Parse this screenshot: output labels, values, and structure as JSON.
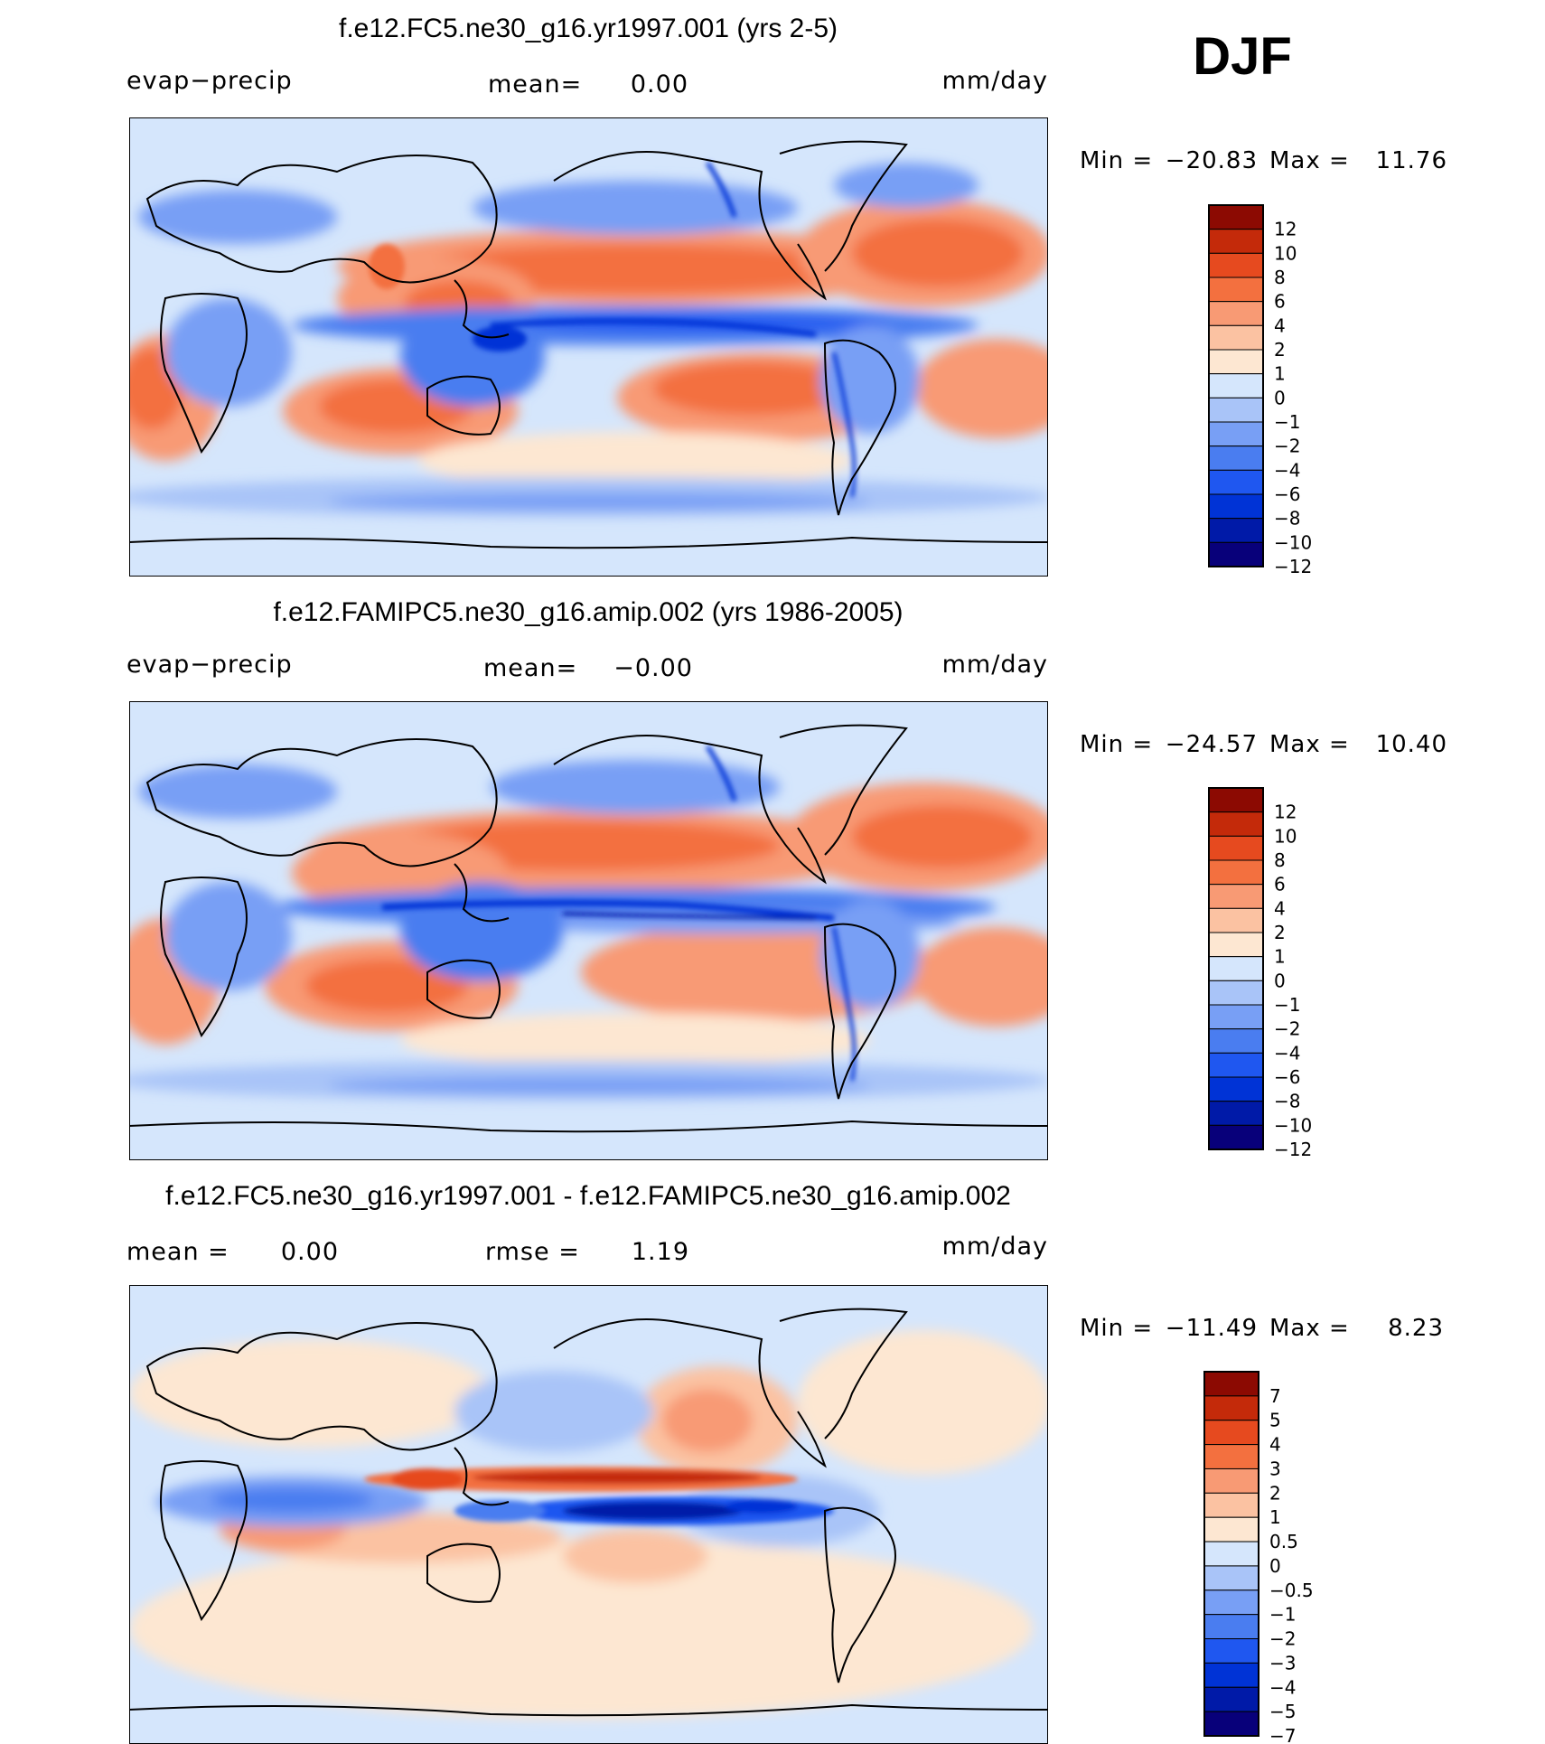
{
  "season": "DJF",
  "colors": {
    "levels12": [
      "#08007a",
      "#001aa8",
      "#0033d6",
      "#1f57f0",
      "#4a7df0",
      "#789ff5",
      "#a9c4f8",
      "#d5e6fc",
      "#fde7d2",
      "#fbc2a2",
      "#f89a74",
      "#f3703f",
      "#e64a1f",
      "#c42a0a",
      "#8c0a02"
    ],
    "levels7": [
      "#08007a",
      "#001aa8",
      "#0033d6",
      "#1f57f0",
      "#4a7df0",
      "#789ff5",
      "#a9c4f8",
      "#d5e6fc",
      "#fde7d2",
      "#fbc2a2",
      "#f89a74",
      "#f3703f",
      "#e64a1f",
      "#c42a0a",
      "#8c0a02"
    ]
  },
  "panels": [
    {
      "id": "p1",
      "title": "f.e12.FC5.ne30_g16.yr1997.001 (yrs 2-5)",
      "left_label": "evap−precip",
      "mean_label": "mean=",
      "mean_value": "0.00",
      "units": "mm/day",
      "min_label": "Min  =",
      "min_value": "−20.83",
      "max_label": "Max  =",
      "max_value": "11.76",
      "colorbar_labels": [
        "12",
        "10",
        "8",
        "6",
        "4",
        "2",
        "1",
        "0",
        "−1",
        "−2",
        "−4",
        "−6",
        "−8",
        "−10",
        "−12"
      ]
    },
    {
      "id": "p2",
      "title": "f.e12.FAMIPC5.ne30_g16.amip.002 (yrs 1986-2005)",
      "left_label": "evap−precip",
      "mean_label": "mean=",
      "mean_value": "−0.00",
      "units": "mm/day",
      "min_label": "Min  =",
      "min_value": "−24.57",
      "max_label": "Max  =",
      "max_value": "10.40",
      "colorbar_labels": [
        "12",
        "10",
        "8",
        "6",
        "4",
        "2",
        "1",
        "0",
        "−1",
        "−2",
        "−4",
        "−6",
        "−8",
        "−10",
        "−12"
      ]
    },
    {
      "id": "p3",
      "title": "f.e12.FC5.ne30_g16.yr1997.001 - f.e12.FAMIPC5.ne30_g16.amip.002",
      "left_label": "mean  =",
      "left_value": "0.00",
      "mean_label": "rmse  =",
      "mean_value": "1.19",
      "units": "mm/day",
      "min_label": "Min  =",
      "min_value": "−11.49",
      "max_label": "Max  =",
      "max_value": "8.23",
      "colorbar_labels": [
        "7",
        "5",
        "4",
        "3",
        "2",
        "1",
        "0.5",
        "0",
        "−0.5",
        "−1",
        "−2",
        "−3",
        "−4",
        "−5",
        "−7"
      ]
    }
  ]
}
